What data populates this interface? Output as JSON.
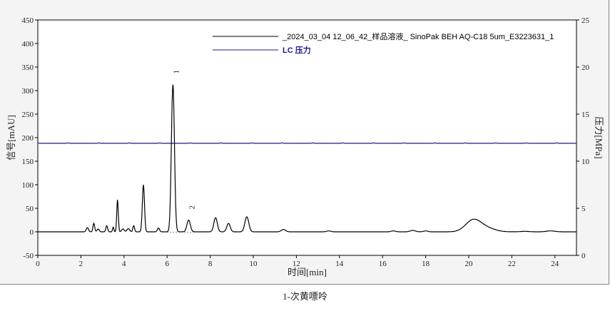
{
  "chart_data": {
    "type": "line",
    "title": "",
    "xlabel": "时间[min]",
    "ylabel": "信号[mAU]",
    "y2label": "压力[MPa]",
    "xlim": [
      0,
      25
    ],
    "ylim": [
      -50,
      450
    ],
    "y2lim": [
      0,
      25
    ],
    "xticks": [
      0,
      2,
      4,
      6,
      8,
      10,
      12,
      14,
      16,
      18,
      20,
      22,
      24
    ],
    "yticks": [
      -50,
      0,
      50,
      100,
      150,
      200,
      250,
      300,
      350,
      400,
      450
    ],
    "y2ticks": [
      0,
      5,
      10,
      15,
      20,
      25
    ],
    "grid": false,
    "legend_position": "top-right",
    "series": [
      {
        "name": "_2024_03_04  12_06_42_样品溶液_ SinoPak BEH AQ-C18 5um_E3223631_1",
        "axis": "left",
        "color": "#000000",
        "baseline": 0,
        "peaks_rt_height_width": [
          [
            2.3,
            9,
            0.05
          ],
          [
            2.6,
            18,
            0.04
          ],
          [
            2.8,
            6,
            0.05
          ],
          [
            3.2,
            13,
            0.04
          ],
          [
            3.5,
            10,
            0.03
          ],
          [
            3.7,
            68,
            0.035
          ],
          [
            3.95,
            6,
            0.06
          ],
          [
            4.2,
            7,
            0.06
          ],
          [
            4.45,
            13,
            0.04
          ],
          [
            4.9,
            100,
            0.05
          ],
          [
            5.6,
            8,
            0.05
          ],
          [
            6.27,
            313,
            0.07
          ],
          [
            7.0,
            25,
            0.08
          ],
          [
            8.25,
            30,
            0.08
          ],
          [
            8.85,
            18,
            0.08
          ],
          [
            9.7,
            32,
            0.09
          ],
          [
            11.4,
            5,
            0.1
          ],
          [
            13.5,
            2,
            0.1
          ],
          [
            16.5,
            2,
            0.1
          ],
          [
            17.4,
            3,
            0.12
          ],
          [
            18.0,
            2,
            0.1
          ],
          [
            20.2,
            24,
            0.35
          ],
          [
            20.8,
            8,
            0.4
          ],
          [
            22.6,
            1,
            0.2
          ],
          [
            23.8,
            2,
            0.2
          ]
        ]
      },
      {
        "name": "LC 压力",
        "axis": "right",
        "color": "#1a1a8c",
        "values_constant": 11.9
      }
    ],
    "peak_labels": [
      {
        "text": "1",
        "x": 6.27,
        "y": 313
      },
      {
        "text": "2",
        "x": 7.0,
        "y": 25
      }
    ]
  },
  "caption": "1-次黄嘌呤"
}
